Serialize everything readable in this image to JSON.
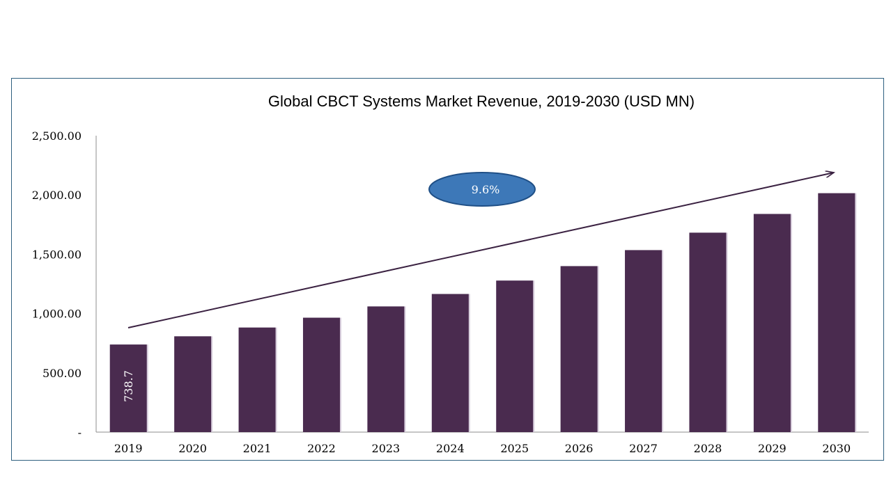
{
  "chart_data": {
    "type": "bar",
    "title": "Global CBCT Systems Market Revenue, 2019-2030 (USD MN)",
    "xlabel": "",
    "ylabel": "",
    "categories": [
      "2019",
      "2020",
      "2021",
      "2022",
      "2023",
      "2024",
      "2025",
      "2026",
      "2027",
      "2028",
      "2029",
      "2030"
    ],
    "values": [
      738.7,
      808,
      882,
      965,
      1060,
      1165,
      1278,
      1400,
      1535,
      1682,
      1840,
      2015
    ],
    "ylim": [
      0,
      2500
    ],
    "yticks": [
      0,
      500,
      1000,
      1500,
      2000,
      2500
    ],
    "ytick_labels": [
      "-",
      "500.00",
      "1,000.00",
      "1,500.00",
      "2,000.00",
      "2,500.00"
    ],
    "data_labels": [
      {
        "category": "2019",
        "text": "738.7"
      }
    ],
    "annotation": {
      "text": "9.6%"
    },
    "grid": false,
    "legend": "none",
    "colors": {
      "bar": "#4a2b4f",
      "bar_shadow": "#d7cddc",
      "arrow": "#3a2141",
      "ellipse_fill": "#3d78b8",
      "ellipse_stroke": "#1f4f86",
      "frame": "#2e5f7f",
      "axis": "#8c8c8c"
    }
  }
}
